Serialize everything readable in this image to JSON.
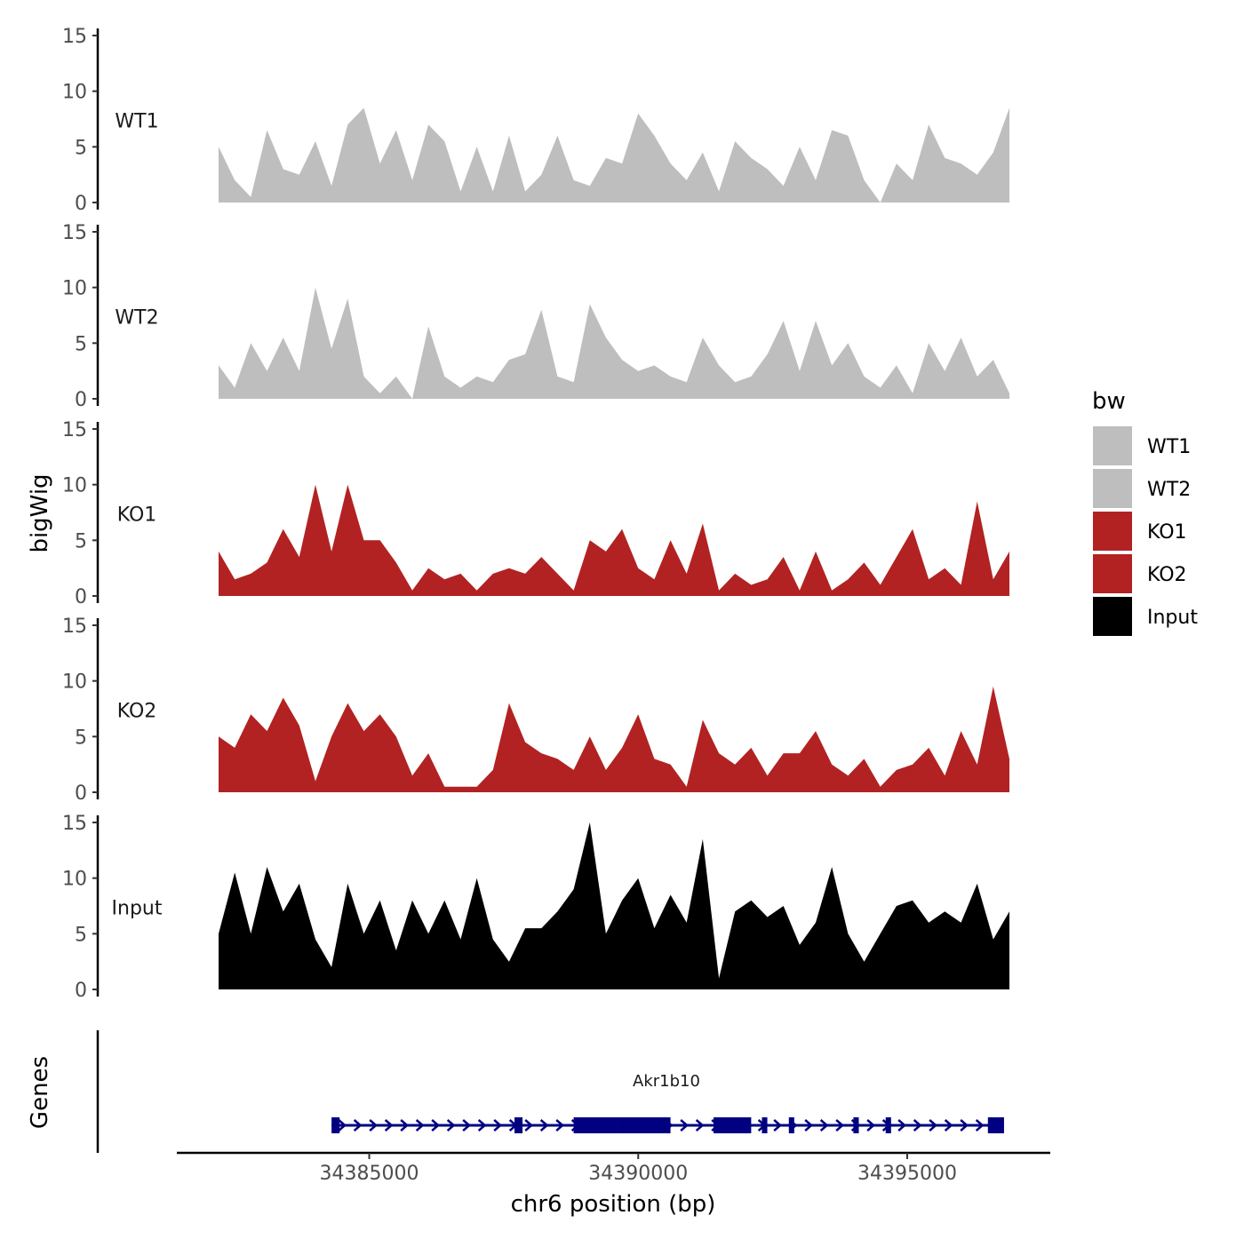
{
  "chart_data": {
    "type": "area",
    "title": "",
    "ylabel": "bigWig",
    "xlabel": "chr6 position (bp)",
    "x_range": [
      34382200,
      34396900
    ],
    "x_ticks": [
      34385000,
      34390000,
      34395000
    ],
    "x_tick_labels": [
      "34385000",
      "34390000",
      "34395000"
    ],
    "ylim": [
      0,
      15
    ],
    "y_ticks": [
      0,
      5,
      10,
      15
    ],
    "y_tick_labels": [
      "0",
      "5",
      "10",
      "15"
    ],
    "legend_title": "bw",
    "legend_position": "right",
    "series": [
      {
        "name": "WT1",
        "color": "#bebebe",
        "x": [
          34382200,
          34382500,
          34382800,
          34383100,
          34383400,
          34383700,
          34384000,
          34384300,
          34384600,
          34384900,
          34385200,
          34385500,
          34385800,
          34386100,
          34386400,
          34386700,
          34387000,
          34387300,
          34387600,
          34387900,
          34388200,
          34388500,
          34388800,
          34389100,
          34389400,
          34389700,
          34390000,
          34390300,
          34390600,
          34390900,
          34391200,
          34391500,
          34391800,
          34392100,
          34392400,
          34392700,
          34393000,
          34393300,
          34393600,
          34393900,
          34394200,
          34394500,
          34394800,
          34395100,
          34395400,
          34395700,
          34396000,
          34396300,
          34396600,
          34396900
        ],
        "y": [
          5.0,
          2.0,
          0.5,
          6.5,
          3.0,
          2.5,
          5.5,
          1.5,
          7.0,
          8.5,
          3.5,
          6.5,
          2.0,
          7.0,
          5.5,
          1.0,
          5.0,
          1.0,
          6.0,
          1.0,
          2.5,
          6.0,
          2.0,
          1.5,
          4.0,
          3.5,
          8.0,
          6.0,
          3.5,
          2.0,
          4.5,
          1.0,
          5.5,
          4.0,
          3.0,
          1.5,
          5.0,
          2.0,
          6.5,
          6.0,
          2.0,
          0.0,
          3.5,
          2.0,
          7.0,
          4.0,
          3.5,
          2.5,
          4.5,
          8.5
        ]
      },
      {
        "name": "WT2",
        "color": "#bebebe",
        "x": [
          34382200,
          34382500,
          34382800,
          34383100,
          34383400,
          34383700,
          34384000,
          34384300,
          34384600,
          34384900,
          34385200,
          34385500,
          34385800,
          34386100,
          34386400,
          34386700,
          34387000,
          34387300,
          34387600,
          34387900,
          34388200,
          34388500,
          34388800,
          34389100,
          34389400,
          34389700,
          34390000,
          34390300,
          34390600,
          34390900,
          34391200,
          34391500,
          34391800,
          34392100,
          34392400,
          34392700,
          34393000,
          34393300,
          34393600,
          34393900,
          34394200,
          34394500,
          34394800,
          34395100,
          34395400,
          34395700,
          34396000,
          34396300,
          34396600,
          34396900
        ],
        "y": [
          3.0,
          1.0,
          5.0,
          2.5,
          5.5,
          2.5,
          10.0,
          4.5,
          9.0,
          2.0,
          0.5,
          2.0,
          0.0,
          6.5,
          2.0,
          1.0,
          2.0,
          1.5,
          3.5,
          4.0,
          8.0,
          2.0,
          1.5,
          8.5,
          5.5,
          3.5,
          2.5,
          3.0,
          2.0,
          1.5,
          5.5,
          3.0,
          1.5,
          2.0,
          4.0,
          7.0,
          2.5,
          7.0,
          3.0,
          5.0,
          2.0,
          1.0,
          3.0,
          0.5,
          5.0,
          2.5,
          5.5,
          2.0,
          3.5,
          0.5
        ]
      },
      {
        "name": "KO1",
        "color": "#b22222",
        "x": [
          34382200,
          34382500,
          34382800,
          34383100,
          34383400,
          34383700,
          34384000,
          34384300,
          34384600,
          34384900,
          34385200,
          34385500,
          34385800,
          34386100,
          34386400,
          34386700,
          34387000,
          34387300,
          34387600,
          34387900,
          34388200,
          34388500,
          34388800,
          34389100,
          34389400,
          34389700,
          34390000,
          34390300,
          34390600,
          34390900,
          34391200,
          34391500,
          34391800,
          34392100,
          34392400,
          34392700,
          34393000,
          34393300,
          34393600,
          34393900,
          34394200,
          34394500,
          34394800,
          34395100,
          34395400,
          34395700,
          34396000,
          34396300,
          34396600,
          34396900
        ],
        "y": [
          4.0,
          1.5,
          2.0,
          3.0,
          6.0,
          3.5,
          10.0,
          4.0,
          10.0,
          5.0,
          5.0,
          3.0,
          0.5,
          2.5,
          1.5,
          2.0,
          0.5,
          2.0,
          2.5,
          2.0,
          3.5,
          2.0,
          0.5,
          5.0,
          4.0,
          6.0,
          2.5,
          1.5,
          5.0,
          2.0,
          6.5,
          0.5,
          2.0,
          1.0,
          1.5,
          3.5,
          0.5,
          4.0,
          0.5,
          1.5,
          3.0,
          1.0,
          3.5,
          6.0,
          1.5,
          2.5,
          1.0,
          8.5,
          1.5,
          4.0
        ]
      },
      {
        "name": "KO2",
        "color": "#b22222",
        "x": [
          34382200,
          34382500,
          34382800,
          34383100,
          34383400,
          34383700,
          34384000,
          34384300,
          34384600,
          34384900,
          34385200,
          34385500,
          34385800,
          34386100,
          34386400,
          34386700,
          34387000,
          34387300,
          34387600,
          34387900,
          34388200,
          34388500,
          34388800,
          34389100,
          34389400,
          34389700,
          34390000,
          34390300,
          34390600,
          34390900,
          34391200,
          34391500,
          34391800,
          34392100,
          34392400,
          34392700,
          34393000,
          34393300,
          34393600,
          34393900,
          34394200,
          34394500,
          34394800,
          34395100,
          34395400,
          34395700,
          34396000,
          34396300,
          34396600,
          34396900
        ],
        "y": [
          5.0,
          4.0,
          7.0,
          5.5,
          8.5,
          6.0,
          1.0,
          5.0,
          8.0,
          5.5,
          7.0,
          5.0,
          1.5,
          3.5,
          0.5,
          0.5,
          0.5,
          2.0,
          8.0,
          4.5,
          3.5,
          3.0,
          2.0,
          5.0,
          2.0,
          4.0,
          7.0,
          3.0,
          2.5,
          0.5,
          6.5,
          3.5,
          2.5,
          4.0,
          1.5,
          3.5,
          3.5,
          5.5,
          2.5,
          1.5,
          3.0,
          0.5,
          2.0,
          2.5,
          4.0,
          1.5,
          5.5,
          2.5,
          9.5,
          3.0
        ]
      },
      {
        "name": "Input",
        "color": "#000000",
        "x": [
          34382200,
          34382500,
          34382800,
          34383100,
          34383400,
          34383700,
          34384000,
          34384300,
          34384600,
          34384900,
          34385200,
          34385500,
          34385800,
          34386100,
          34386400,
          34386700,
          34387000,
          34387300,
          34387600,
          34387900,
          34388200,
          34388500,
          34388800,
          34389100,
          34389400,
          34389700,
          34390000,
          34390300,
          34390600,
          34390900,
          34391200,
          34391500,
          34391800,
          34392100,
          34392400,
          34392700,
          34393000,
          34393300,
          34393600,
          34393900,
          34394200,
          34394500,
          34394800,
          34395100,
          34395400,
          34395700,
          34396000,
          34396300,
          34396600,
          34396900
        ],
        "y": [
          5.0,
          10.5,
          5.0,
          11.0,
          7.0,
          9.5,
          4.5,
          2.0,
          9.5,
          5.0,
          8.0,
          3.5,
          8.0,
          5.0,
          8.0,
          4.5,
          10.0,
          4.5,
          2.5,
          5.5,
          5.5,
          7.0,
          9.0,
          15.0,
          5.0,
          8.0,
          10.0,
          5.5,
          8.5,
          6.0,
          13.5,
          1.0,
          7.0,
          8.0,
          6.5,
          7.5,
          4.0,
          6.0,
          11.0,
          5.0,
          2.5,
          5.0,
          7.5,
          8.0,
          6.0,
          7.0,
          6.0,
          9.5,
          4.5,
          7.0
        ]
      }
    ],
    "genes_label": "Genes",
    "gene": {
      "name": "Akr1b10",
      "color": "#000080",
      "start": 34384300,
      "end": 34396800,
      "strand": "+",
      "exons": [
        [
          34384300,
          34384450
        ],
        [
          34387700,
          34387850
        ],
        [
          34388800,
          34389600
        ],
        [
          34389600,
          34390600
        ],
        [
          34391400,
          34392100
        ],
        [
          34392300,
          34392400
        ],
        [
          34392800,
          34392900
        ],
        [
          34394000,
          34394100
        ],
        [
          34394600,
          34394700
        ],
        [
          34396500,
          34396800
        ]
      ]
    }
  }
}
